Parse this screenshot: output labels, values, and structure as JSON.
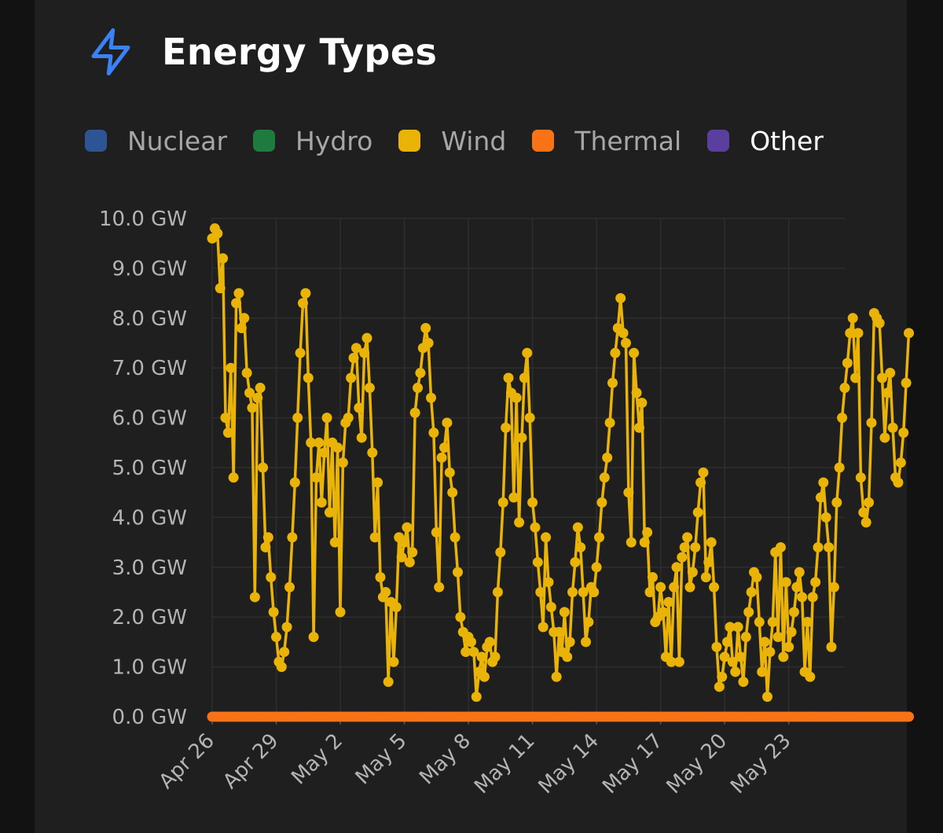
{
  "header": {
    "title": "Energy Types",
    "icon": "lightning-icon",
    "icon_color": "#3b82f6"
  },
  "legend": [
    {
      "key": "nuclear",
      "label": "Nuclear",
      "color": "#2d5596",
      "active": false
    },
    {
      "key": "hydro",
      "label": "Hydro",
      "color": "#1f7a3e",
      "active": false
    },
    {
      "key": "wind",
      "label": "Wind",
      "color": "#eab308",
      "active": false
    },
    {
      "key": "thermal",
      "label": "Thermal",
      "color": "#f97316",
      "active": false
    },
    {
      "key": "other",
      "label": "Other",
      "color": "#5b3f9e",
      "active": true
    }
  ],
  "chart_data": {
    "type": "line",
    "title": "",
    "xlabel": "",
    "ylabel": "",
    "y_unit": "GW",
    "ylim": [
      0,
      10
    ],
    "yticks": [
      "0.0 GW",
      "1.0 GW",
      "2.0 GW",
      "3.0 GW",
      "4.0 GW",
      "5.0 GW",
      "6.0 GW",
      "7.0 GW",
      "8.0 GW",
      "9.0 GW",
      "10.0 GW"
    ],
    "xticks": [
      "Apr 26",
      "Apr 29",
      "May 2",
      "May 5",
      "May 8",
      "May 11",
      "May 14",
      "May 17",
      "May 20",
      "May 23"
    ],
    "x_range": [
      "Apr 26",
      "May 25 15:00"
    ],
    "grid": true,
    "series": [
      {
        "name": "Wind",
        "color": "#eab308",
        "x_start": "Apr 26 00:00",
        "x_step_hours": 3,
        "values": [
          9.6,
          9.8,
          9.7,
          8.6,
          9.2,
          6,
          5.7,
          7,
          4.8,
          8.3,
          8.5,
          7.8,
          8,
          6.9,
          6.5,
          6.2,
          2.4,
          6.4,
          6.6,
          5,
          3.4,
          3.6,
          2.8,
          2.1,
          1.6,
          1.1,
          1,
          1.3,
          1.8,
          2.6,
          3.6,
          4.7,
          6,
          7.3,
          8.3,
          8.5,
          6.8,
          5.5,
          1.6,
          4.8,
          5.5,
          4.3,
          5.3,
          6,
          4.1,
          5.5,
          3.5,
          5.4,
          2.1,
          5.1,
          5.9,
          6,
          6.8,
          7.2,
          7.4,
          6.2,
          5.6,
          7.3,
          7.6,
          6.6,
          5.3,
          3.6,
          4.7,
          2.8,
          2.4,
          2.5,
          0.7,
          2.3,
          1.1,
          2.2,
          3.6,
          3.2,
          3.5,
          3.8,
          3.1,
          3.3,
          6.1,
          6.6,
          6.9,
          7.4,
          7.8,
          7.5,
          6.4,
          5.7,
          3.7,
          2.6,
          5.2,
          5.4,
          5.9,
          4.9,
          4.5,
          3.6,
          2.9,
          2,
          1.7,
          1.3,
          1.6,
          1.5,
          1.3,
          0.4,
          0.9,
          1.2,
          0.8,
          1.4,
          1.5,
          1.1,
          1.2,
          2.5,
          3.3,
          4.3,
          5.8,
          6.8,
          6.5,
          4.4,
          6.4,
          3.9,
          5.6,
          6.8,
          7.3,
          6,
          4.3,
          3.8,
          3.1,
          2.5,
          1.8,
          3.6,
          2.7,
          2.2,
          1.7,
          0.8,
          1.7,
          1.3,
          2.1,
          1.2,
          1.5,
          2.5,
          3.1,
          3.8,
          3.4,
          2.5,
          1.5,
          1.9,
          2.6,
          2.5,
          3,
          3.6,
          4.3,
          4.8,
          5.2,
          5.9,
          6.7,
          7.3,
          7.8,
          8.4,
          7.7,
          7.5,
          4.5,
          3.5,
          7.3,
          6.5,
          5.8,
          6.3,
          3.5,
          3.7,
          2.5,
          2.8,
          1.9,
          2,
          2.6,
          2.1,
          1.2,
          2.3,
          1.1,
          2.6,
          3,
          1.1,
          3.2,
          3.4,
          3.6,
          2.6,
          2.9,
          3.4,
          4.1,
          4.7,
          4.9,
          2.8,
          3.1,
          3.5,
          2.6,
          1.4,
          0.6,
          0.8,
          1.2,
          1.5,
          1.8,
          1.1,
          0.9,
          1.8,
          1.2,
          0.7,
          1.6,
          2.1,
          2.5,
          2.9,
          2.8,
          1.9,
          0.9,
          1.5,
          0.4,
          1.3,
          1.9,
          3.3,
          1.6,
          3.4,
          1.2,
          2.7,
          1.4,
          1.7,
          2.1,
          2.6,
          2.9,
          2.4,
          0.9,
          1.9,
          0.8,
          2.4,
          2.7,
          3.4,
          4.4,
          4.7,
          4,
          3.4,
          1.4,
          2.6,
          4.3,
          5,
          6,
          6.6,
          7.1,
          7.7,
          8,
          6.8,
          7.7,
          4.8,
          4.1,
          3.9,
          4.3,
          5.9,
          8.1,
          8,
          7.9,
          6.8,
          5.6,
          6.5,
          6.9,
          5.8,
          4.8,
          4.7,
          5.1,
          5.7,
          6.7,
          7.7
        ]
      },
      {
        "name": "Thermal",
        "color": "#f97316",
        "x_start": "Apr 26 00:00",
        "x_step_hours": 3,
        "values": "0.0 throughout"
      }
    ]
  }
}
